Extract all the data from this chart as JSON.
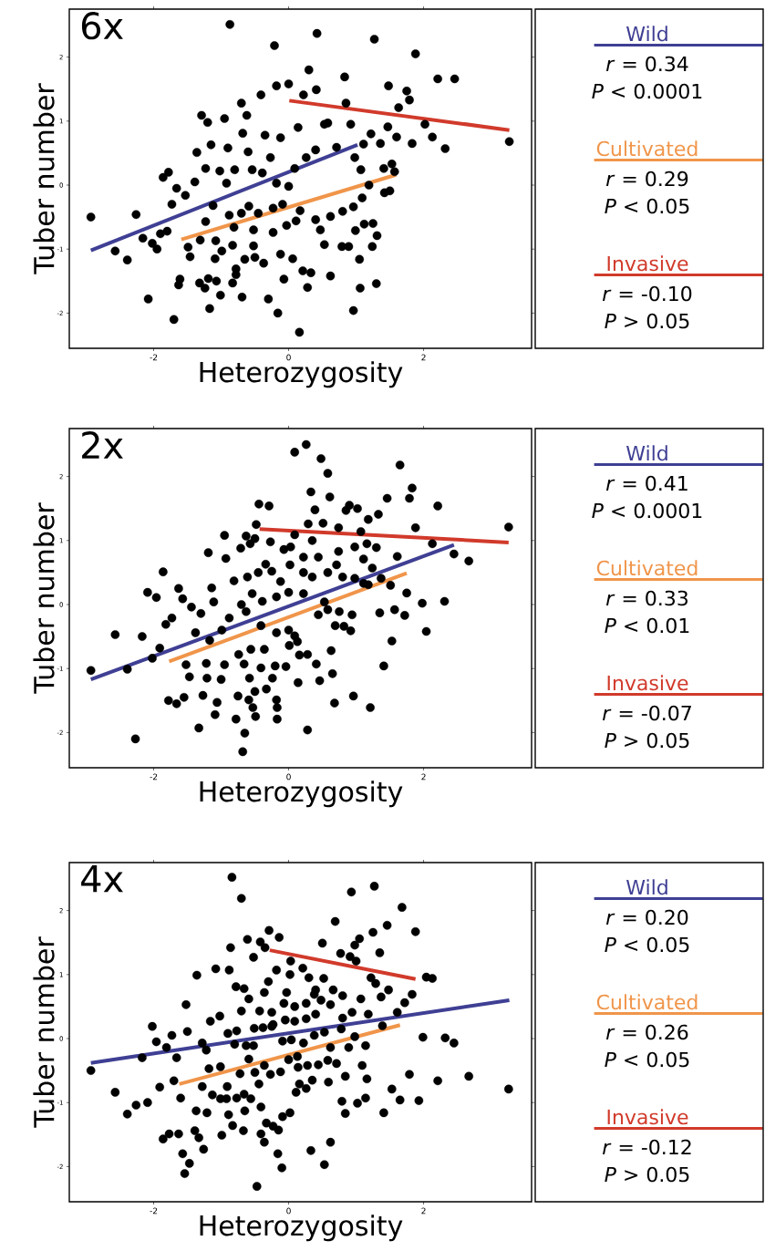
{
  "chart_data": [
    {
      "type": "scatter",
      "title": "6x",
      "xlabel": "Heterozygosity",
      "ylabel": "Tuber number",
      "xlim": [
        -3.25,
        3.6
      ],
      "ylim": [
        -2.55,
        2.75
      ],
      "xticks": [
        -2,
        0,
        2
      ],
      "yticks": [
        -2,
        -1,
        0,
        1,
        2
      ],
      "legend": "right",
      "marker": "circle",
      "series": [
        {
          "color": "#000000",
          "x": [
            -2.93,
            -0.87,
            0.42,
            -0.21,
            1.27,
            1.88,
            2.21,
            2.46,
            3.27,
            2.32,
            2.13,
            1.83,
            2.02,
            1.75,
            1.48,
            0.83,
            0.3,
            0.0,
            -0.18,
            -0.41,
            -0.7,
            -1.29,
            -1.2,
            -0.95,
            -0.62,
            -0.68,
            -0.35,
            0.41,
            0.22,
            0.85,
            1.63,
            1.79,
            1.47,
            1.6,
            1.36,
            1.22,
            0.92,
            0.53,
            0.14,
            -0.12,
            -1.15,
            -1.36,
            -0.9,
            -0.6,
            -1.23,
            -1.78,
            -1.86,
            -1.66,
            -1.53,
            -1.73,
            -1.39,
            -2.26,
            -2.16,
            -2.57,
            -2.39,
            -2.02,
            -1.95,
            -1.9,
            -1.8,
            -1.49,
            -1.46,
            -1.31,
            -1.23,
            -1.12,
            -1.02,
            -0.92,
            -0.8,
            -0.54,
            -0.27,
            -0.39,
            -0.18,
            0.0,
            0.09,
            0.26,
            0.4,
            0.58,
            0.71,
            0.98,
            1.11,
            1.07,
            1.41,
            1.53,
            1.57,
            1.19,
            1.42,
            1.5,
            1.09,
            0.96,
            0.8,
            0.62,
            0.4,
            0.47,
            0.17,
            -0.09,
            -0.23,
            -0.45,
            -0.59,
            -0.7,
            -0.88,
            -0.81,
            -0.52,
            -0.23,
            -0.03,
            0.11,
            -1.08,
            -0.83,
            -0.99,
            -1.09,
            -0.65,
            -0.5,
            -0.37,
            -0.52,
            -0.12,
            0.06,
            0.99,
            1.12,
            1.25,
            1.31,
            1.24,
            0.79,
            0.89,
            0.53,
            1.05,
            0.62,
            0.21,
            0.33,
            -0.07,
            -0.78,
            -0.78,
            -1.19,
            -1.07,
            -1.32,
            -1.24,
            -1.61,
            -1.63,
            -0.83,
            -1.01,
            -0.69,
            -0.3,
            0.28,
            1.06,
            1.3,
            0.96,
            -0.16,
            -1.17,
            -2.08,
            -1.7,
            0.16
          ],
          "values": [
            -0.5,
            2.51,
            2.37,
            2.18,
            2.28,
            2.05,
            1.66,
            1.66,
            0.68,
            0.57,
            0.75,
            0.65,
            0.95,
            1.47,
            1.55,
            1.69,
            1.8,
            1.58,
            1.55,
            1.41,
            1.28,
            1.09,
            0.98,
            1.04,
            1.09,
            0.81,
            0.78,
            1.49,
            1.41,
            1.28,
            1.21,
            1.33,
            0.91,
            0.75,
            0.65,
            0.8,
            0.95,
            0.95,
            0.9,
            0.74,
            0.63,
            0.51,
            0.58,
            0.52,
            0.26,
            0.2,
            0.12,
            -0.05,
            -0.16,
            -0.3,
            0.05,
            -0.46,
            -0.83,
            -1.03,
            -1.17,
            -0.91,
            -1.0,
            -0.76,
            -0.72,
            -0.97,
            -1.12,
            -0.86,
            -0.57,
            -0.32,
            0.22,
            0.03,
            0.24,
            0.24,
            0.43,
            0.19,
            0.03,
            -0.02,
            0.26,
            0.43,
            0.55,
            0.97,
            0.59,
            0.43,
            0.64,
            0.24,
            0.26,
            0.33,
            0.21,
            0.0,
            -0.12,
            -0.09,
            -0.2,
            -0.34,
            -0.41,
            -0.49,
            -0.54,
            -0.7,
            -0.4,
            -0.3,
            -0.36,
            -0.44,
            -0.33,
            -0.44,
            -0.47,
            -0.66,
            -0.7,
            -0.74,
            -0.63,
            -0.56,
            -0.87,
            -0.94,
            -1.03,
            -1.15,
            -1.16,
            -1.13,
            -1.22,
            -0.95,
            -1.08,
            -1.15,
            -0.71,
            -0.61,
            -0.6,
            -0.79,
            -0.96,
            -0.96,
            -0.96,
            -0.93,
            -1.16,
            -1.42,
            -1.34,
            -1.37,
            -1.47,
            -1.31,
            -1.4,
            -1.46,
            -1.5,
            -1.53,
            -1.61,
            -1.47,
            -1.56,
            -1.53,
            -1.72,
            -1.75,
            -1.78,
            -1.6,
            -1.61,
            -1.54,
            -1.96,
            -2.0,
            -1.93,
            -1.78,
            -2.1,
            -2.3
          ]
        },
        {
          "name": "Wild",
          "type": "line",
          "marker": "none",
          "color": "#3f3f94",
          "x": [
            -2.93,
            1.02
          ],
          "values": [
            -1.02,
            0.63
          ]
        },
        {
          "name": "Cultivated",
          "type": "line",
          "marker": "none",
          "color": "#f0954a",
          "x": [
            -1.59,
            1.59
          ],
          "values": [
            -0.85,
            0.16
          ]
        },
        {
          "name": "Invasive",
          "type": "line",
          "marker": "none",
          "color": "#d13a2b",
          "x": [
            0.01,
            3.27
          ],
          "values": [
            1.32,
            0.86
          ]
        }
      ],
      "annotations": [
        "*r* = 0.34",
        "*P* < 0.0001",
        "*r* = 0.29",
        "*P* < 0.05",
        "*r* = -0.10",
        "*P* > 0.05"
      ]
    },
    {
      "type": "scatter",
      "title": "2x",
      "xlabel": "Heterozygosity",
      "ylabel": "Tuber number",
      "xlim": [
        -3.25,
        3.6
      ],
      "ylim": [
        -2.55,
        2.75
      ],
      "xticks": [
        -2,
        0,
        2
      ],
      "yticks": [
        -2,
        -1,
        0,
        1,
        2
      ],
      "legend": "right",
      "marker": "circle",
      "series": [
        {
          "color": "#000000",
          "x": [
            -2.93,
            -2.57,
            -2.39,
            -2.27,
            -2.17,
            -2.09,
            -1.96,
            -1.86,
            -2.02,
            -1.91,
            -1.82,
            -1.73,
            -1.63,
            -1.57,
            -1.44,
            -1.3,
            -1.19,
            -1.14,
            -1.11,
            -0.95,
            -0.93,
            -0.81,
            -0.7,
            -0.63,
            -0.71,
            -0.57,
            -0.5,
            -0.44,
            -0.29,
            -0.48,
            -0.27,
            -0.07,
            0.03,
            0.09,
            0.26,
            0.48,
            0.58,
            0.61,
            0.33,
            0.39,
            0.29,
            0.51,
            0.74,
            0.85,
            0.9,
            1.02,
            1.18,
            1.33,
            1.46,
            1.65,
            1.83,
            1.79,
            1.88,
            2.21,
            2.13,
            2.45,
            2.67,
            3.26,
            2.31,
            1.98,
            2.04,
            1.75,
            1.72,
            1.57,
            1.35,
            1.53,
            1.41,
            1.21,
            0.96,
            0.68,
            0.65,
            0.63,
            0.46,
            0.41,
            0.28,
            0.16,
            0.14,
            -0.04,
            0.01,
            0.28,
            -0.17,
            -0.17,
            -0.18,
            -0.24,
            -0.2,
            -0.33,
            -0.5,
            -0.53,
            -0.49,
            -0.59,
            -0.65,
            -0.68,
            -0.78,
            -0.75,
            -1.33,
            -1.09,
            -1.06,
            -1.27,
            -1.55,
            -1.78,
            -1.66,
            -1.47,
            -1.52,
            -1.22,
            -1.21,
            -1.0,
            -0.95,
            -0.66,
            -0.58,
            -0.41,
            -0.36,
            -0.56,
            -0.74,
            -1.38,
            -1.17,
            -0.99,
            -0.88,
            -0.63,
            -0.41,
            -0.18,
            0.0,
            0.09,
            0.13,
            0.44,
            0.58,
            0.75,
            0.94,
            0.82,
            0.92,
            0.69,
            0.53,
            0.22,
            0.0,
            -0.18,
            -0.39,
            -0.54,
            -0.61,
            -0.45,
            -0.34,
            -0.25,
            -0.12,
            0.02,
            0.22,
            0.35,
            0.22,
            0.44,
            0.58,
            0.71,
            0.8,
            0.98,
            1.11,
            1.24,
            1.37,
            1.51,
            1.61,
            0.98,
            1.16,
            1.3,
            0.74,
            1.07,
            0.09,
            0.35,
            1.18,
            1.11
          ],
          "values": [
            -1.03,
            -0.47,
            -1.01,
            -2.1,
            -0.5,
            0.19,
            0.11,
            0.51,
            -0.84,
            -0.68,
            -0.31,
            -0.21,
            0.25,
            0.09,
            -0.04,
            -0.14,
            0.81,
            0.26,
            0.04,
            1.08,
            0.72,
            0.37,
            0.0,
            1.07,
            0.88,
            0.95,
            1.03,
            1.57,
            1.54,
            1.25,
            0.98,
            0.86,
            0.9,
            2.38,
            2.5,
            2.28,
            2.05,
            1.68,
            1.76,
            1.48,
            1.26,
            1.27,
            1.2,
            1.47,
            1.55,
            1.5,
            1.33,
            1.41,
            1.66,
            2.18,
            1.82,
            1.66,
            1.2,
            1.54,
            0.95,
            0.79,
            0.68,
            1.21,
            0.05,
            0.02,
            -0.42,
            0.18,
            -0.17,
            -0.08,
            -0.13,
            -0.57,
            -0.96,
            -1.61,
            -1.43,
            -1.54,
            -1.08,
            -0.72,
            -1.19,
            -0.93,
            -0.78,
            -0.79,
            -1.22,
            -0.97,
            -0.64,
            -1.96,
            -1.79,
            -1.61,
            -1.49,
            -1.15,
            -0.96,
            -1.32,
            -1.36,
            -1.61,
            -1.75,
            -1.49,
            -2.01,
            -2.3,
            -1.79,
            -1.43,
            -1.93,
            -1.72,
            -1.53,
            -1.42,
            -1.45,
            -1.5,
            -1.55,
            -1.13,
            -0.94,
            -0.92,
            -1.15,
            -1.17,
            -0.94,
            -0.93,
            -1.15,
            -0.99,
            -0.7,
            -0.7,
            -0.78,
            -0.44,
            -0.56,
            -0.4,
            -0.21,
            -0.11,
            -0.33,
            -0.44,
            -0.4,
            -0.49,
            -0.58,
            -0.16,
            -0.08,
            -0.11,
            -0.16,
            -0.34,
            -0.41,
            -0.33,
            0.04,
            0.17,
            0.19,
            0.12,
            0.05,
            0.17,
            0.43,
            0.5,
            0.63,
            0.52,
            0.36,
            0.62,
            0.5,
            0.43,
            0.74,
            0.74,
            0.5,
            0.62,
            0.43,
            0.41,
            0.71,
            0.57,
            0.41,
            0.3,
            0.75,
            0.9,
            0.95,
            0.89,
            0.83,
            1.14,
            1.09,
            1.0,
            0.31,
            0.33
          ]
        },
        {
          "name": "Wild",
          "type": "line",
          "marker": "none",
          "color": "#3f3f94",
          "x": [
            -2.93,
            2.45
          ],
          "values": [
            -1.17,
            0.93
          ]
        },
        {
          "name": "Cultivated",
          "type": "line",
          "marker": "none",
          "color": "#f0954a",
          "x": [
            -1.77,
            1.75
          ],
          "values": [
            -0.89,
            0.49
          ]
        },
        {
          "name": "Invasive",
          "type": "line",
          "marker": "none",
          "color": "#d13a2b",
          "x": [
            -0.43,
            3.26
          ],
          "values": [
            1.18,
            0.97
          ]
        }
      ],
      "annotations": [
        "*r* = 0.41",
        "*P* < 0.0001",
        "*r* = 0.33",
        "*P* < 0.01",
        "*r* = -0.07",
        "*P* > 0.05"
      ]
    },
    {
      "type": "scatter",
      "title": "4x",
      "xlabel": "Heterozygosity",
      "ylabel": "Tuber number",
      "xlim": [
        -3.25,
        3.6
      ],
      "ylim": [
        -2.55,
        2.75
      ],
      "xticks": [
        -2,
        0,
        2
      ],
      "yticks": [
        -2,
        -1,
        0,
        1,
        2
      ],
      "legend": "right",
      "marker": "circle",
      "series": [
        {
          "color": "#000000",
          "x": [
            -2.93,
            -2.57,
            -2.39,
            -2.26,
            -2.09,
            -2.17,
            -2.02,
            -1.96,
            -1.81,
            -1.73,
            -1.66,
            -1.7,
            -1.91,
            -1.6,
            -1.5,
            -1.52,
            -1.36,
            -1.86,
            -1.77,
            -1.63,
            -1.57,
            -1.54,
            -1.47,
            -1.39,
            -1.33,
            -1.26,
            -1.37,
            -1.21,
            -1.28,
            -1.18,
            -1.22,
            -1.28,
            -1.16,
            -1.02,
            -1.08,
            -0.88,
            -0.86,
            -0.84,
            -0.7,
            -0.78,
            -0.66,
            -0.61,
            -0.52,
            -0.42,
            -0.35,
            -0.29,
            -0.14,
            -0.36,
            -0.3,
            -0.18,
            0.02,
            -0.03,
            0.03,
            0.21,
            0.3,
            0.4,
            0.5,
            0.52,
            0.69,
            0.77,
            0.91,
            1.0,
            0.93,
            1.27,
            1.25,
            1.46,
            1.68,
            1.88,
            1.35,
            1.05,
            0.98,
            1.22,
            1.29,
            1.48,
            1.37,
            1.83,
            1.72,
            2.04,
            2.13,
            1.99,
            2.32,
            2.45,
            2.67,
            3.26,
            2.21,
            1.93,
            1.65,
            1.53,
            1.79,
            1.41,
            1.39,
            1.61,
            1.14,
            1.02,
            0.84,
            0.79,
            0.84,
            0.71,
            0.59,
            1.16,
            1.09,
            0.62,
            0.53,
            0.33,
            -0.1,
            -0.16,
            -0.15,
            -0.23,
            -0.33,
            -0.36,
            -0.41,
            -0.47,
            -0.67,
            -0.83,
            -0.89,
            -0.99,
            -0.65,
            -0.41,
            -0.09,
            0.02,
            0.11,
            0.26,
            0.35,
            0.16,
            0.58,
            0.44,
            0.28,
            0.14,
            0.0,
            -0.12,
            -0.27,
            -0.44,
            -0.56,
            -0.66,
            -0.77,
            -0.92,
            -1.01,
            -1.13,
            -0.91,
            -1.01,
            -0.72,
            -0.59,
            -0.5,
            -0.36,
            -0.52,
            -0.63,
            -0.8,
            -0.9,
            -0.77,
            -0.51,
            -0.38,
            -0.25,
            -0.09,
            0.04,
            0.13,
            0.22,
            0.38,
            0.53,
            0.62,
            0.78,
            0.89,
            0.98,
            1.14,
            0.94,
            1.18,
            0.8,
            0.62,
            0.4,
            0.26,
            0.09,
            -0.05,
            -0.23,
            -0.25,
            -0.43,
            -0.7,
            -0.59,
            -0.07,
            0.09,
            0.26,
            0.48,
            0.66,
            0.8,
            1.07,
            0.38
          ],
          "values": [
            -0.5,
            -0.84,
            -1.18,
            -1.04,
            -1.0,
            -0.3,
            0.19,
            -0.05,
            -0.14,
            0.05,
            -0.3,
            -0.66,
            -0.76,
            -0.93,
            0.11,
            0.53,
            0.99,
            -1.57,
            -1.49,
            -1.49,
            -1.8,
            -2.11,
            -1.95,
            -1.44,
            -1.55,
            -1.73,
            -1.13,
            -1.16,
            -0.75,
            -0.47,
            -0.18,
            -0.07,
            0.27,
            0.35,
            1.09,
            1.07,
            1.42,
            2.52,
            2.19,
            0.81,
            0.78,
            1.55,
            1.27,
            1.51,
            1.42,
            1.69,
            1.58,
            0.72,
            0.89,
            1.07,
            1.0,
            0.72,
            1.21,
            1.1,
            0.95,
            0.76,
            1.49,
            0.94,
            1.83,
            1.33,
            1.28,
            1.21,
            2.29,
            2.38,
            1.66,
            1.77,
            2.05,
            1.67,
            1.34,
            1.56,
            1.46,
            0.95,
            0.86,
            0.76,
            0.65,
            0.69,
            0.56,
            0.96,
            0.94,
            0.02,
            0.01,
            -0.07,
            -0.59,
            -0.79,
            -0.66,
            -0.97,
            -0.96,
            -0.79,
            -0.56,
            -1.16,
            0.2,
            0.41,
            -0.93,
            -1.01,
            -1.17,
            -0.98,
            -0.59,
            -0.39,
            -0.68,
            -0.63,
            -0.42,
            -1.62,
            -1.97,
            -1.75,
            -2.02,
            -1.8,
            -1.43,
            -1.37,
            -1.32,
            -1.62,
            -1.49,
            -2.31,
            -1.44,
            -1.36,
            -1.19,
            -1.51,
            -1.13,
            -1.07,
            -1.22,
            -1.16,
            -0.84,
            -0.78,
            -0.65,
            -0.71,
            -0.34,
            -0.41,
            -0.42,
            -0.45,
            -0.33,
            -0.52,
            -0.56,
            -0.71,
            -0.94,
            -0.87,
            -0.93,
            -0.94,
            -0.94,
            -0.88,
            -0.75,
            -0.44,
            -0.55,
            -0.32,
            -0.53,
            -0.42,
            -0.11,
            -0.11,
            -0.09,
            0.08,
            0.12,
            0.16,
            0.17,
            0.19,
            -0.04,
            -0.02,
            -0.28,
            -0.07,
            0.05,
            0.1,
            -0.14,
            0.15,
            -0.14,
            0.03,
            -0.11,
            0.41,
            0.38,
            0.32,
            0.53,
            0.38,
            0.31,
            0.27,
            0.29,
            0.22,
            0.41,
            0.43,
            0.43,
            0.62,
            0.55,
            0.5,
            0.55,
            0.6,
            0.76,
            0.67,
            0.62,
            0.69
          ]
        },
        {
          "name": "Wild",
          "type": "line",
          "marker": "none",
          "color": "#3f3f94",
          "x": [
            -2.93,
            3.27
          ],
          "values": [
            -0.38,
            0.6
          ]
        },
        {
          "name": "Cultivated",
          "type": "line",
          "marker": "none",
          "color": "#f0954a",
          "x": [
            -1.62,
            1.65
          ],
          "values": [
            -0.71,
            0.21
          ]
        },
        {
          "name": "Invasive",
          "type": "line",
          "marker": "none",
          "color": "#d13a2b",
          "x": [
            -0.28,
            1.88
          ],
          "values": [
            1.38,
            0.93
          ]
        }
      ],
      "annotations": [
        "*r* = 0.20",
        "*P* < 0.05",
        "*r* = 0.26",
        "*P* < 0.05",
        "*r* = -0.12",
        "*P* > 0.05"
      ]
    }
  ]
}
